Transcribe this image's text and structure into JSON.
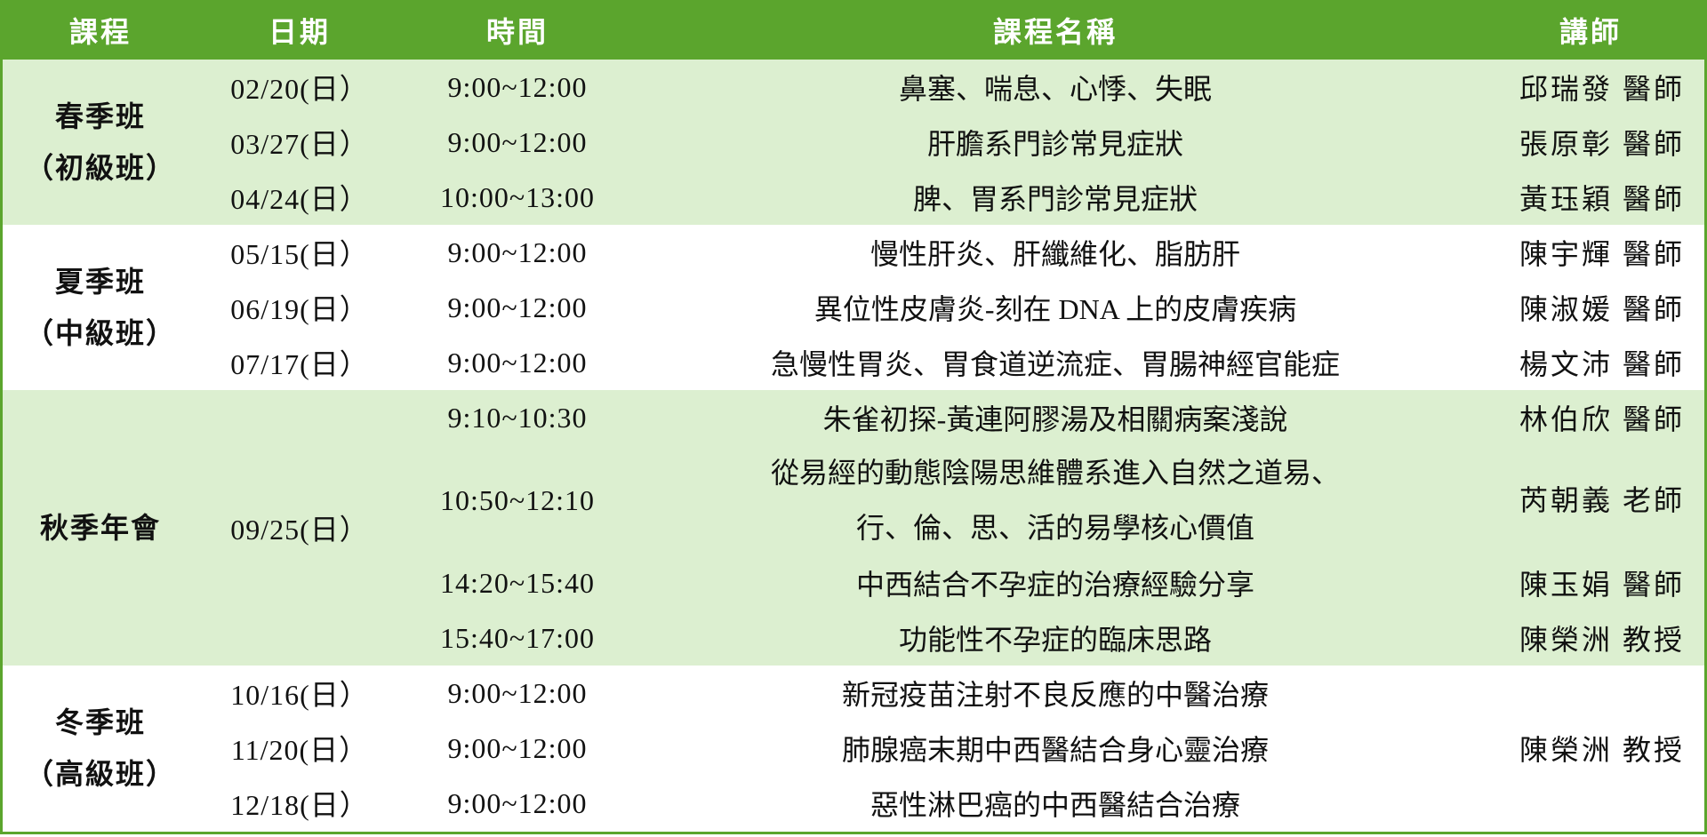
{
  "headers": [
    "課程",
    "日期",
    "時間",
    "課程名稱",
    "講師"
  ],
  "colors": {
    "header_bg": "#5ba52d",
    "alt_row_bg": "#dcefd0"
  },
  "groups": [
    {
      "course_line1": "春季班",
      "course_line2": "（初級班）",
      "sessions": [
        {
          "date": "02/20(日）",
          "time": "9:00~12:00",
          "title": "鼻塞、喘息、心悸、失眠",
          "teacher": "邱瑞發 醫師"
        },
        {
          "date": "03/27(日）",
          "time": "9:00~12:00",
          "title": "肝膽系門診常見症狀",
          "teacher": "張原彰 醫師"
        },
        {
          "date": "04/24(日）",
          "time": "10:00~13:00",
          "title": "脾、胃系門診常見症狀",
          "teacher": "黃珏穎 醫師"
        }
      ]
    },
    {
      "course_line1": "夏季班",
      "course_line2": "（中級班）",
      "sessions": [
        {
          "date": "05/15(日）",
          "time": "9:00~12:00",
          "title": "慢性肝炎、肝纖維化、脂肪肝",
          "teacher": "陳宇輝 醫師"
        },
        {
          "date": "06/19(日）",
          "time": "9:00~12:00",
          "title": "異位性皮膚炎-刻在 DNA 上的皮膚疾病",
          "teacher": "陳淑媛 醫師"
        },
        {
          "date": "07/17(日）",
          "time": "9:00~12:00",
          "title": "急慢性胃炎、胃食道逆流症、胃腸神經官能症",
          "teacher": "楊文沛 醫師"
        }
      ]
    },
    {
      "course_line1": "秋季年會",
      "date": "09/25(日）",
      "sessions": [
        {
          "time": "9:10~10:30",
          "title": "朱雀初探-黃連阿膠湯及相關病案淺說",
          "teacher": "林伯欣 醫師"
        },
        {
          "time": "10:50~12:10",
          "title": "從易經的動態陰陽思維體系進入自然之道易、",
          "title2": "行、倫、思、活的易學核心價值",
          "teacher": "芮朝義 老師"
        },
        {
          "time": "14:20~15:40",
          "title": "中西結合不孕症的治療經驗分享",
          "teacher": "陳玉娟 醫師"
        },
        {
          "time": "15:40~17:00",
          "title": "功能性不孕症的臨床思路",
          "teacher": "陳榮洲 教授"
        }
      ]
    },
    {
      "course_line1": "冬季班",
      "course_line2": "（高級班）",
      "teacher": "陳榮洲 教授",
      "sessions": [
        {
          "date": "10/16(日）",
          "time": "9:00~12:00",
          "title": "新冠疫苗注射不良反應的中醫治療"
        },
        {
          "date": "11/20(日）",
          "time": "9:00~12:00",
          "title": "肺腺癌末期中西醫結合身心靈治療"
        },
        {
          "date": "12/18(日）",
          "time": "9:00~12:00",
          "title": "惡性淋巴癌的中西醫結合治療"
        }
      ]
    }
  ]
}
